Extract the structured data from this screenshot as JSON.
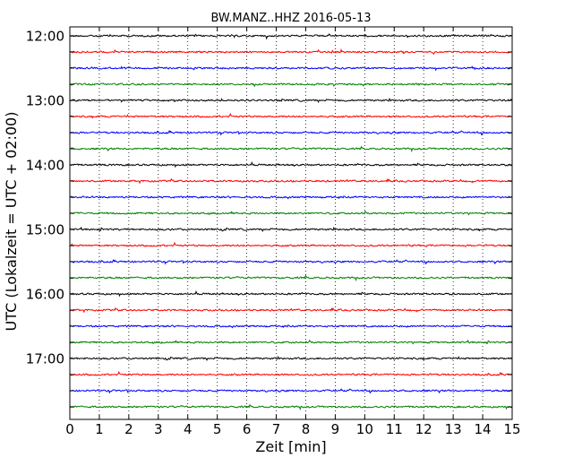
{
  "chart_data": {
    "type": "line",
    "title": "BW.MANZ..HHZ 2016-05-13",
    "xlabel": "Zeit  [min]",
    "ylabel": "UTC (Lokalzeit = UTC + 02:00)",
    "xlim": [
      0,
      15
    ],
    "x_ticks": [
      0,
      1,
      2,
      3,
      4,
      5,
      6,
      7,
      8,
      9,
      10,
      11,
      12,
      13,
      14,
      15
    ],
    "y_tick_labels": [
      "12:00",
      "13:00",
      "14:00",
      "15:00",
      "16:00",
      "17:00"
    ],
    "trace_start_times": [
      "12:00",
      "12:15",
      "12:30",
      "12:45",
      "13:00",
      "13:15",
      "13:30",
      "13:45",
      "14:00",
      "14:15",
      "14:30",
      "14:45",
      "15:00",
      "15:15",
      "15:30",
      "15:45",
      "16:00",
      "16:15",
      "16:30",
      "16:45",
      "17:00",
      "17:15",
      "17:30",
      "17:45"
    ],
    "trace_colors": [
      "#000000",
      "#ff0000",
      "#0000ff",
      "#008000"
    ],
    "grid": "vertical-dotted"
  }
}
